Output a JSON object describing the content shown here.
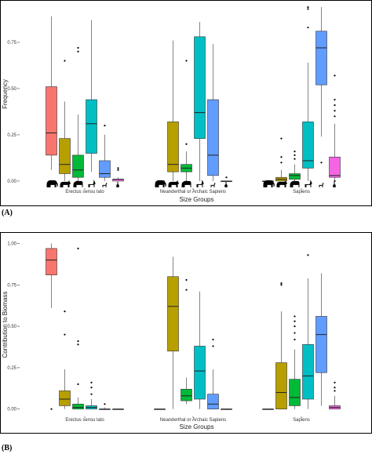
{
  "figure": {
    "panel_labels": [
      "(A)",
      "(B)"
    ]
  },
  "colors": {
    "group1": "#F8766D",
    "group2": "#B79F00",
    "group3": "#00BA38",
    "group4": "#00BFC4",
    "group5": "#619CFF",
    "group6": "#F564E3"
  },
  "icons": [
    "elephant-icon",
    "rhino-icon",
    "bison-icon",
    "deer-icon",
    "antelope-icon",
    "hare-icon"
  ],
  "chart_data": [
    {
      "type": "boxplot",
      "xlabel": "Size Groups",
      "ylabel": "Frequency",
      "categories": [
        "Erectus sensu lato",
        "Neanderthal or Archaic Sapiens",
        "Sapiens"
      ],
      "ylim": [
        -0.03,
        0.97
      ],
      "yticks": [
        0.0,
        0.25,
        0.5,
        0.75
      ],
      "ytick_labels": [
        "0.00",
        "0.25",
        "0.50",
        "0.75"
      ],
      "grid": false,
      "silhouettes": true,
      "boxes": [
        {
          "category": 0,
          "color_index": 0,
          "min": 0.06,
          "q1": 0.14,
          "median": 0.26,
          "q3": 0.51,
          "max": 0.89,
          "outliers": []
        },
        {
          "category": 0,
          "color_index": 1,
          "min": 0.0,
          "q1": 0.04,
          "median": 0.09,
          "q3": 0.23,
          "max": 0.43,
          "outliers": [
            0.65
          ]
        },
        {
          "category": 0,
          "color_index": 2,
          "min": 0.0,
          "q1": 0.02,
          "median": 0.06,
          "q3": 0.14,
          "max": 0.36,
          "outliers": [
            0.7,
            0.72
          ]
        },
        {
          "category": 0,
          "color_index": 3,
          "min": 0.05,
          "q1": 0.15,
          "median": 0.31,
          "q3": 0.44,
          "max": 0.87,
          "outliers": []
        },
        {
          "category": 0,
          "color_index": 4,
          "min": 0.0,
          "q1": 0.02,
          "median": 0.04,
          "q3": 0.11,
          "max": 0.25,
          "outliers": [
            0.3
          ]
        },
        {
          "category": 0,
          "color_index": 5,
          "min": 0.0,
          "q1": 0.0,
          "median": 0.01,
          "q3": 0.01,
          "max": 0.02,
          "outliers": [
            0.06,
            0.07
          ]
        },
        {
          "category": 1,
          "color_index": 1,
          "min": 0.0,
          "q1": 0.05,
          "median": 0.09,
          "q3": 0.32,
          "max": 0.76,
          "outliers": []
        },
        {
          "category": 1,
          "color_index": 2,
          "min": 0.0,
          "q1": 0.05,
          "median": 0.07,
          "q3": 0.09,
          "max": 0.16,
          "outliers": [
            0.2,
            0.65
          ]
        },
        {
          "category": 1,
          "color_index": 3,
          "min": 0.0,
          "q1": 0.23,
          "median": 0.37,
          "q3": 0.78,
          "max": 0.86,
          "outliers": []
        },
        {
          "category": 1,
          "color_index": 4,
          "min": 0.0,
          "q1": 0.03,
          "median": 0.14,
          "q3": 0.44,
          "max": 0.74,
          "outliers": []
        },
        {
          "category": 1,
          "color_index": 5,
          "min": 0.0,
          "q1": 0.0,
          "median": 0.0,
          "q3": 0.0,
          "max": 0.0,
          "outliers": [
            0.02
          ]
        },
        {
          "category": 2,
          "color_index": 0,
          "min": 0.0,
          "q1": 0.0,
          "median": 0.0,
          "q3": 0.0,
          "max": 0.0,
          "outliers": []
        },
        {
          "category": 2,
          "color_index": 1,
          "min": 0.0,
          "q1": 0.0,
          "median": 0.01,
          "q3": 0.02,
          "max": 0.06,
          "outliers": [
            0.1,
            0.13,
            0.23
          ]
        },
        {
          "category": 2,
          "color_index": 2,
          "min": 0.0,
          "q1": 0.01,
          "median": 0.03,
          "q3": 0.04,
          "max": 0.09,
          "outliers": [
            0.12,
            0.14,
            0.16
          ]
        },
        {
          "category": 2,
          "color_index": 3,
          "min": 0.0,
          "q1": 0.07,
          "median": 0.11,
          "q3": 0.32,
          "max": 0.64,
          "outliers": [
            0.83,
            0.93,
            0.94
          ]
        },
        {
          "category": 2,
          "color_index": 4,
          "min": 0.24,
          "q1": 0.52,
          "median": 0.72,
          "q3": 0.81,
          "max": 0.94,
          "outliers": [
            0.1
          ]
        },
        {
          "category": 2,
          "color_index": 5,
          "min": 0.0,
          "q1": 0.02,
          "median": 0.03,
          "q3": 0.13,
          "max": 0.31,
          "outliers": [
            0.35,
            0.38,
            0.41,
            0.44,
            0.57,
            0.0
          ]
        }
      ]
    },
    {
      "type": "boxplot",
      "xlabel": "Size Groups",
      "ylabel": "Contribution to Biomass",
      "categories": [
        "Erectus sensu lato",
        "Neanderthal or Archaic Sapiens",
        "Sapiens"
      ],
      "ylim": [
        -0.03,
        1.05
      ],
      "yticks": [
        0.0,
        0.25,
        0.5,
        0.75,
        1.0
      ],
      "ytick_labels": [
        "0.00",
        "0.25",
        "0.50",
        "0.75",
        "1.00"
      ],
      "grid": false,
      "silhouettes": false,
      "boxes": [
        {
          "category": 0,
          "color_index": 0,
          "min": 0.61,
          "q1": 0.81,
          "median": 0.9,
          "q3": 0.97,
          "max": 1.0,
          "outliers": [
            0.0
          ]
        },
        {
          "category": 0,
          "color_index": 1,
          "min": 0.0,
          "q1": 0.02,
          "median": 0.06,
          "q3": 0.11,
          "max": 0.24,
          "outliers": [
            0.45,
            0.59
          ]
        },
        {
          "category": 0,
          "color_index": 2,
          "min": 0.0,
          "q1": 0.0,
          "median": 0.01,
          "q3": 0.03,
          "max": 0.07,
          "outliers": [
            0.15,
            0.39,
            0.41,
            0.97
          ]
        },
        {
          "category": 0,
          "color_index": 3,
          "min": 0.0,
          "q1": 0.0,
          "median": 0.01,
          "q3": 0.02,
          "max": 0.06,
          "outliers": [
            0.09,
            0.13,
            0.16
          ]
        },
        {
          "category": 0,
          "color_index": 4,
          "min": 0.0,
          "q1": 0.0,
          "median": 0.0,
          "q3": 0.0,
          "max": 0.01,
          "outliers": [
            0.03
          ]
        },
        {
          "category": 0,
          "color_index": 5,
          "min": 0.0,
          "q1": 0.0,
          "median": 0.0,
          "q3": 0.0,
          "max": 0.0,
          "outliers": []
        },
        {
          "category": 1,
          "color_index": 0,
          "min": 0.0,
          "q1": 0.0,
          "median": 0.0,
          "q3": 0.0,
          "max": 0.0,
          "outliers": []
        },
        {
          "category": 1,
          "color_index": 1,
          "min": 0.0,
          "q1": 0.35,
          "median": 0.62,
          "q3": 0.8,
          "max": 0.92,
          "outliers": []
        },
        {
          "category": 1,
          "color_index": 2,
          "min": 0.03,
          "q1": 0.05,
          "median": 0.08,
          "q3": 0.12,
          "max": 0.19,
          "outliers": [
            0.72,
            0.78
          ]
        },
        {
          "category": 1,
          "color_index": 3,
          "min": 0.0,
          "q1": 0.06,
          "median": 0.23,
          "q3": 0.38,
          "max": 0.71,
          "outliers": []
        },
        {
          "category": 1,
          "color_index": 4,
          "min": 0.0,
          "q1": 0.0,
          "median": 0.03,
          "q3": 0.09,
          "max": 0.24,
          "outliers": [
            0.38,
            0.42
          ]
        },
        {
          "category": 1,
          "color_index": 5,
          "min": 0.0,
          "q1": 0.0,
          "median": 0.0,
          "q3": 0.0,
          "max": 0.0,
          "outliers": []
        },
        {
          "category": 2,
          "color_index": 0,
          "min": 0.0,
          "q1": 0.0,
          "median": 0.0,
          "q3": 0.0,
          "max": 0.0,
          "outliers": []
        },
        {
          "category": 2,
          "color_index": 1,
          "min": 0.0,
          "q1": 0.0,
          "median": 0.1,
          "q3": 0.28,
          "max": 0.59,
          "outliers": [
            0.75,
            0.76
          ]
        },
        {
          "category": 2,
          "color_index": 2,
          "min": 0.0,
          "q1": 0.02,
          "median": 0.07,
          "q3": 0.18,
          "max": 0.36,
          "outliers": [
            0.42,
            0.46,
            0.5,
            0.53,
            0.56
          ]
        },
        {
          "category": 2,
          "color_index": 3,
          "min": 0.0,
          "q1": 0.06,
          "median": 0.2,
          "q3": 0.39,
          "max": 0.79,
          "outliers": [
            0.93
          ]
        },
        {
          "category": 2,
          "color_index": 4,
          "min": 0.02,
          "q1": 0.22,
          "median": 0.45,
          "q3": 0.56,
          "max": 0.82,
          "outliers": []
        },
        {
          "category": 2,
          "color_index": 5,
          "min": 0.0,
          "q1": 0.0,
          "median": 0.01,
          "q3": 0.02,
          "max": 0.08,
          "outliers": [
            0.11,
            0.13,
            0.16
          ]
        }
      ]
    }
  ]
}
